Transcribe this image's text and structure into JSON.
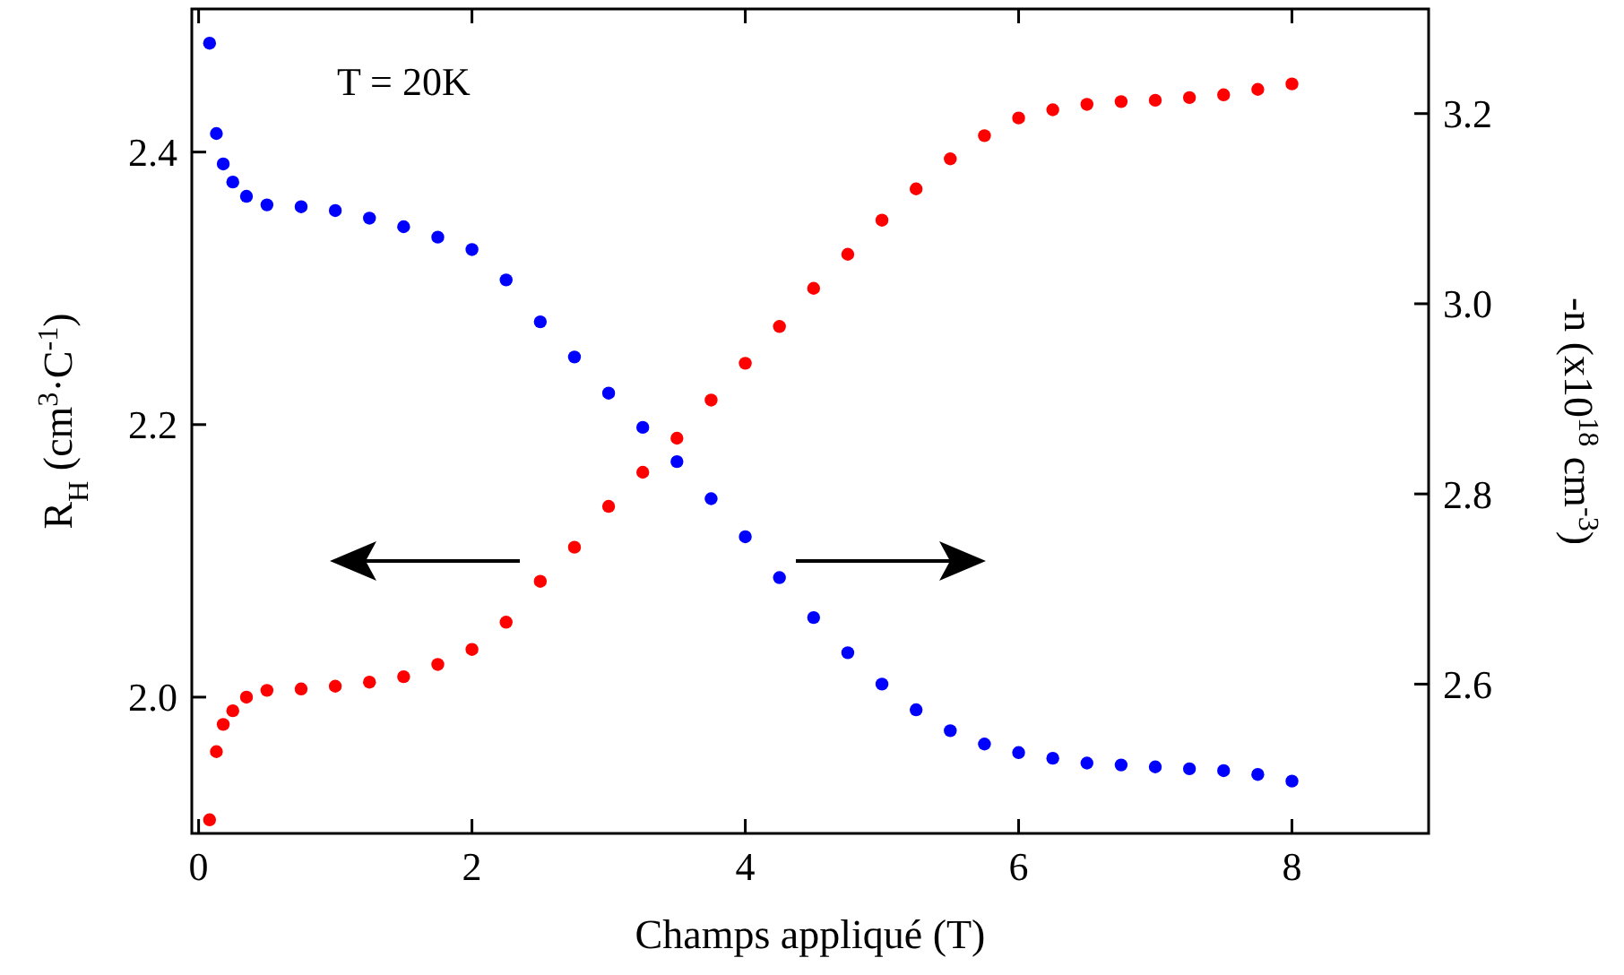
{
  "chart_data": {
    "type": "scatter",
    "xlabel": "Champs appliqué (T)",
    "ylabel": "R$_{H}$ (cm$^{3}$·C$^{-1}$)",
    "y2label": "-n (x10$^{18}$ cm$^{-3}$)",
    "annotations": [
      "T = 20K"
    ],
    "xlim": [
      -0.05,
      9
    ],
    "xticks": [
      0,
      2,
      4,
      6,
      8
    ],
    "ylim": [
      1.9,
      2.505
    ],
    "yticks": [
      {
        "value": 2,
        "label": "2.0"
      },
      2.2,
      2.4
    ],
    "y2lim": [
      2.443,
      3.31
    ],
    "y2ticks": [
      2.6,
      2.8,
      {
        "value": 3,
        "label": "3.0"
      },
      3.2
    ],
    "marker": "circle",
    "grid": false,
    "series": [
      {
        "color": "#ff0000",
        "x": [
          0.08,
          0.13,
          0.18,
          0.25,
          0.35,
          0.5,
          0.75,
          1.0,
          1.25,
          1.5,
          1.75,
          2.0,
          2.25,
          2.5,
          2.75,
          3.0,
          3.25,
          3.5,
          3.75,
          4.0,
          4.25,
          4.5,
          4.75,
          5.0,
          5.25,
          5.5,
          5.75,
          6.0,
          6.25,
          6.5,
          6.75,
          7.0,
          7.25,
          7.5,
          7.75,
          8.0
        ],
        "values": [
          1.91,
          1.96,
          1.98,
          1.99,
          2.0,
          2.005,
          2.006,
          2.008,
          2.011,
          2.015,
          2.024,
          2.035,
          2.055,
          2.085,
          2.11,
          2.14,
          2.165,
          2.19,
          2.218,
          2.245,
          2.272,
          2.3,
          2.325,
          2.35,
          2.373,
          2.395,
          2.412,
          2.425,
          2.431,
          2.435,
          2.437,
          2.438,
          2.44,
          2.442,
          2.446,
          2.45
        ]
      },
      {
        "color": "#0000ff",
        "axis": "y2",
        "x": [
          0.08,
          0.13,
          0.18,
          0.25,
          0.35,
          0.5,
          0.75,
          1.0,
          1.25,
          1.5,
          1.75,
          2.0,
          2.25,
          2.5,
          2.75,
          3.0,
          3.25,
          3.5,
          3.75,
          4.0,
          4.25,
          4.5,
          4.75,
          5.0,
          5.25,
          5.5,
          5.75,
          6.0,
          6.25,
          6.5,
          6.75,
          7.0,
          7.25,
          7.5,
          7.75,
          8.0
        ],
        "values": [
          3.274,
          3.179,
          3.147,
          3.128,
          3.113,
          3.104,
          3.102,
          3.098,
          3.09,
          3.081,
          3.07,
          3.057,
          3.025,
          2.981,
          2.944,
          2.906,
          2.87,
          2.834,
          2.795,
          2.755,
          2.712,
          2.67,
          2.633,
          2.6,
          2.573,
          2.551,
          2.537,
          2.528,
          2.522,
          2.517,
          2.515,
          2.513,
          2.511,
          2.509,
          2.505,
          2.498
        ]
      }
    ]
  }
}
